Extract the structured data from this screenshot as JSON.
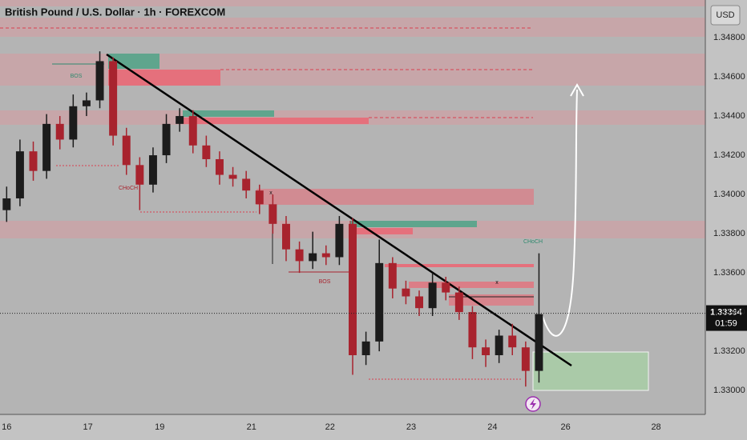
{
  "chart_data": {
    "type": "candlestick",
    "title": "British Pound / U.S. Dollar · 1h · FOREXCOM",
    "currency": "USD",
    "x": [
      0.5,
      1.5,
      2.5,
      3.5,
      4.5,
      5.5,
      6.5,
      7.5,
      8.5,
      9.5,
      10.5,
      11.5,
      12.5,
      13.5,
      14.5,
      15.5,
      16.5,
      17.5,
      18.5,
      19.5,
      20.5,
      21.5,
      22.5,
      23.5,
      24.5,
      25.5,
      26.5,
      27.5,
      28.5,
      29.5,
      30.5,
      31.5,
      32.5,
      33.5,
      34.5,
      35.5,
      36.5,
      37.5,
      38.5,
      39.5,
      40.5
    ],
    "open": [
      1.3392,
      1.3398,
      1.3422,
      1.3412,
      1.3436,
      1.3428,
      1.3445,
      1.3448,
      1.3468,
      1.343,
      1.3415,
      1.3405,
      1.342,
      1.3436,
      1.344,
      1.3425,
      1.3418,
      1.341,
      1.3408,
      1.3402,
      1.3395,
      1.3385,
      1.3372,
      1.3366,
      1.337,
      1.3368,
      1.3385,
      1.3318,
      1.3325,
      1.3365,
      1.3352,
      1.3348,
      1.3342,
      1.3355,
      1.335,
      1.334,
      1.3322,
      1.3318,
      1.3328,
      1.3322,
      1.331
    ],
    "high": [
      1.3404,
      1.3428,
      1.3427,
      1.3441,
      1.344,
      1.3451,
      1.3452,
      1.3473,
      1.347,
      1.3434,
      1.3419,
      1.3424,
      1.3441,
      1.3444,
      1.3443,
      1.343,
      1.3422,
      1.3414,
      1.3412,
      1.3405,
      1.34,
      1.3389,
      1.3376,
      1.3381,
      1.3374,
      1.3389,
      1.3388,
      1.333,
      1.3377,
      1.3368,
      1.3356,
      1.3351,
      1.336,
      1.3358,
      1.3353,
      1.3343,
      1.3326,
      1.3331,
      1.3334,
      1.3325,
      1.337
    ],
    "low": [
      1.3386,
      1.3394,
      1.3407,
      1.3408,
      1.3423,
      1.3424,
      1.344,
      1.3444,
      1.3425,
      1.341,
      1.3392,
      1.3401,
      1.3416,
      1.3432,
      1.3421,
      1.3414,
      1.3405,
      1.3404,
      1.3398,
      1.339,
      1.338,
      1.3366,
      1.336,
      1.3362,
      1.3364,
      1.3364,
      1.3308,
      1.3313,
      1.332,
      1.3347,
      1.3344,
      1.3338,
      1.3338,
      1.3346,
      1.3336,
      1.3316,
      1.3312,
      1.3314,
      1.3318,
      1.3302,
      1.3304
    ],
    "close": [
      1.3398,
      1.3422,
      1.3412,
      1.3436,
      1.3428,
      1.3445,
      1.3448,
      1.3468,
      1.343,
      1.3415,
      1.3405,
      1.342,
      1.3436,
      1.344,
      1.3425,
      1.3418,
      1.341,
      1.3408,
      1.3402,
      1.3395,
      1.3385,
      1.3372,
      1.3366,
      1.337,
      1.3368,
      1.3385,
      1.3318,
      1.3325,
      1.3365,
      1.3352,
      1.3348,
      1.3342,
      1.3355,
      1.335,
      1.334,
      1.3322,
      1.3318,
      1.3328,
      1.3322,
      1.331,
      1.3339
    ],
    "up_color": "#1c1c1c",
    "down_color": "#a8232e",
    "xlim": [
      0,
      53
    ],
    "xticks": [
      {
        "value": 0.5,
        "label": "16"
      },
      {
        "value": 6.6,
        "label": "17"
      },
      {
        "value": 12,
        "label": "19"
      },
      {
        "value": 18.9,
        "label": "21"
      },
      {
        "value": 24.8,
        "label": "22"
      },
      {
        "value": 30.9,
        "label": "23"
      },
      {
        "value": 37,
        "label": "24"
      },
      {
        "value": 42.5,
        "label": "26"
      },
      {
        "value": 49.3,
        "label": "28"
      }
    ],
    "ylim": [
      1.32878,
      1.34992
    ],
    "yticks": [
      {
        "value": 1.33,
        "label": "1.33000"
      },
      {
        "value": 1.332,
        "label": "1.33200"
      },
      {
        "value": 1.334,
        "label": "1.33400"
      },
      {
        "value": 1.336,
        "label": "1.33600"
      },
      {
        "value": 1.338,
        "label": "1.33800"
      },
      {
        "value": 1.34,
        "label": "1.34000"
      },
      {
        "value": 1.342,
        "label": "1.34200"
      },
      {
        "value": 1.344,
        "label": "1.34400"
      },
      {
        "value": 1.346,
        "label": "1.34600"
      },
      {
        "value": 1.348,
        "label": "1.34800"
      }
    ],
    "last_price": {
      "value": 1.33394,
      "label": "1.33394"
    },
    "countdown": "01:59",
    "annotations": [
      "BOS",
      "CHoCH",
      "BOS",
      "CHoCH",
      "x",
      "x"
    ]
  }
}
